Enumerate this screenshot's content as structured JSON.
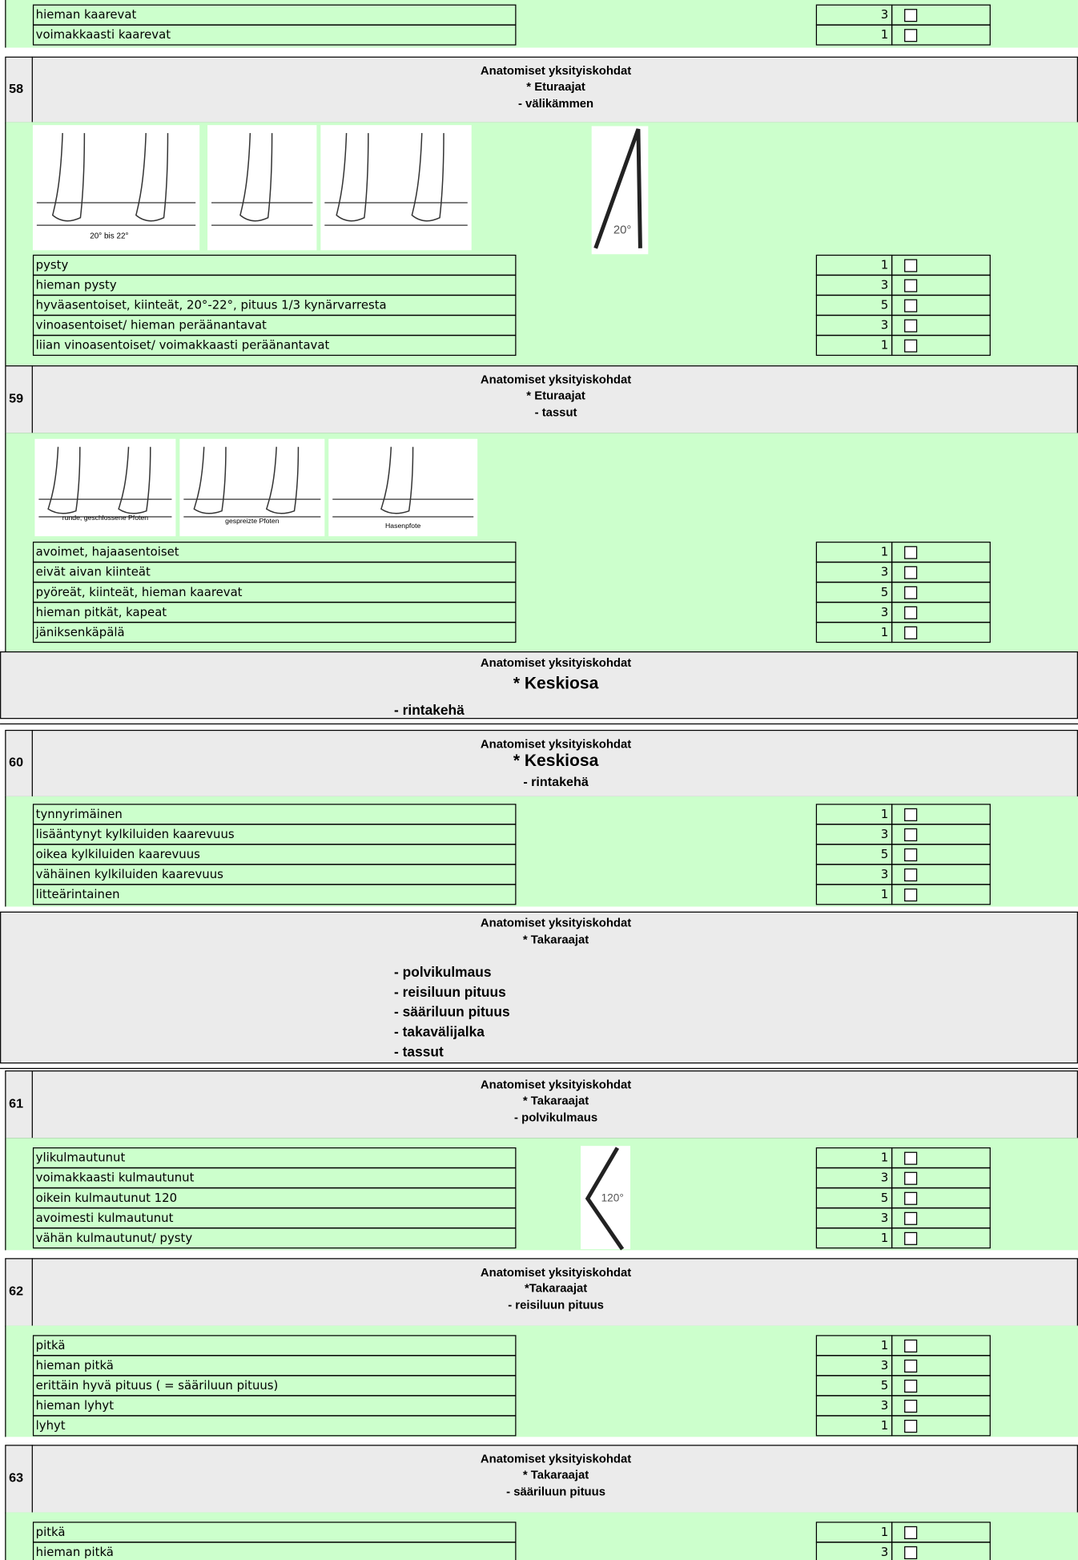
{
  "blocks": [
    {
      "type": "options",
      "options": [
        {
          "label": "hieman kaarevat",
          "score": 3
        },
        {
          "label": "voimakkaasti kaarevat",
          "score": 1
        }
      ]
    },
    {
      "type": "header",
      "number": "58",
      "title": "Anatomiset yksityiskohdat",
      "subtitle": "* Eturaajat",
      "detail": "- välikämmen"
    },
    {
      "type": "options",
      "captions": [
        "20° bis 22°",
        "20°"
      ],
      "options": [
        {
          "label": "pysty",
          "score": 1
        },
        {
          "label": "hieman pysty",
          "score": 3
        },
        {
          "label": "hyväasentoiset, kiinteät, 20°-22°, pituus 1/3 kynärvarresta",
          "score": 5
        },
        {
          "label": "vinoasentoiset/ hieman peräänantavat",
          "score": 3
        },
        {
          "label": "liian vinoasentoiset/ voimakkaasti peräänantavat",
          "score": 1
        }
      ]
    },
    {
      "type": "header",
      "number": "59",
      "title": "Anatomiset yksityiskohdat",
      "subtitle": "* Eturaajat",
      "detail": "- tassut"
    },
    {
      "type": "options",
      "captions": [
        "runde, geschlossene Pfoten",
        "gespreizte Pfoten",
        "Hasenpfote"
      ],
      "options": [
        {
          "label": "avoimet, hajaasentoiset",
          "score": 1
        },
        {
          "label": "eivät aivan kiinteät",
          "score": 3
        },
        {
          "label": "pyöreät,  kiinteät, hieman kaarevat",
          "score": 5
        },
        {
          "label": "hieman pitkät, kapeat",
          "score": 3
        },
        {
          "label": "jäniksenkäpälä",
          "score": 1
        }
      ]
    },
    {
      "type": "summary",
      "title": "Anatomiset yksityiskohdat",
      "subtitle": "* Keskiosa",
      "items": [
        "- rintakehä"
      ]
    },
    {
      "type": "header",
      "number": "60",
      "title": "Anatomiset yksityiskohdat",
      "subtitle": "* Keskiosa",
      "detail": "- rintakehä"
    },
    {
      "type": "options",
      "options": [
        {
          "label": "tynnyrimäinen",
          "score": 1
        },
        {
          "label": "lisääntynyt kylkiluiden kaarevuus",
          "score": 3
        },
        {
          "label": "oikea kylkiluiden kaarevuus",
          "score": 5
        },
        {
          "label": "vähäinen kylkiluiden kaarevuus",
          "score": 3
        },
        {
          "label": "litteärintainen",
          "score": 1
        }
      ]
    },
    {
      "type": "summary",
      "title": "Anatomiset yksityiskohdat",
      "subtitle": "* Takaraajat",
      "items": [
        "- polvikulmaus",
        "- reisiluun pituus",
        "- sääriluun pituus",
        "- takavälijalka",
        "- tassut"
      ]
    },
    {
      "type": "header",
      "number": "61",
      "title": "Anatomiset yksityiskohdat",
      "subtitle": "* Takaraajat",
      "detail": "- polvikulmaus"
    },
    {
      "type": "options",
      "captions": [
        "120°"
      ],
      "options": [
        {
          "label": "ylikulmautunut",
          "score": 1
        },
        {
          "label": "voimakkaasti kulmautunut",
          "score": 3
        },
        {
          "label": "oikein kulmautunut 120",
          "score": 5
        },
        {
          "label": "avoimesti kulmautunut",
          "score": 3
        },
        {
          "label": "vähän kulmautunut/ pysty",
          "score": 1
        }
      ]
    },
    {
      "type": "header",
      "number": "62",
      "title": "Anatomiset yksityiskohdat",
      "subtitle": "*Takaraajat",
      "detail": "- reisiluun pituus"
    },
    {
      "type": "options",
      "options": [
        {
          "label": "pitkä",
          "score": 1
        },
        {
          "label": "hieman pitkä",
          "score": 3
        },
        {
          "label": "erittäin hyvä pituus ( = sääriluun pituus)",
          "score": 5
        },
        {
          "label": "hieman lyhyt",
          "score": 3
        },
        {
          "label": "lyhyt",
          "score": 1
        }
      ]
    },
    {
      "type": "header",
      "number": "63",
      "title": "Anatomiset yksityiskohdat",
      "subtitle": "* Takaraajat",
      "detail": "- sääriluun pituus"
    },
    {
      "type": "options",
      "options": [
        {
          "label": "pitkä",
          "score": 1
        },
        {
          "label": "hieman pitkä",
          "score": 3
        }
      ]
    }
  ]
}
